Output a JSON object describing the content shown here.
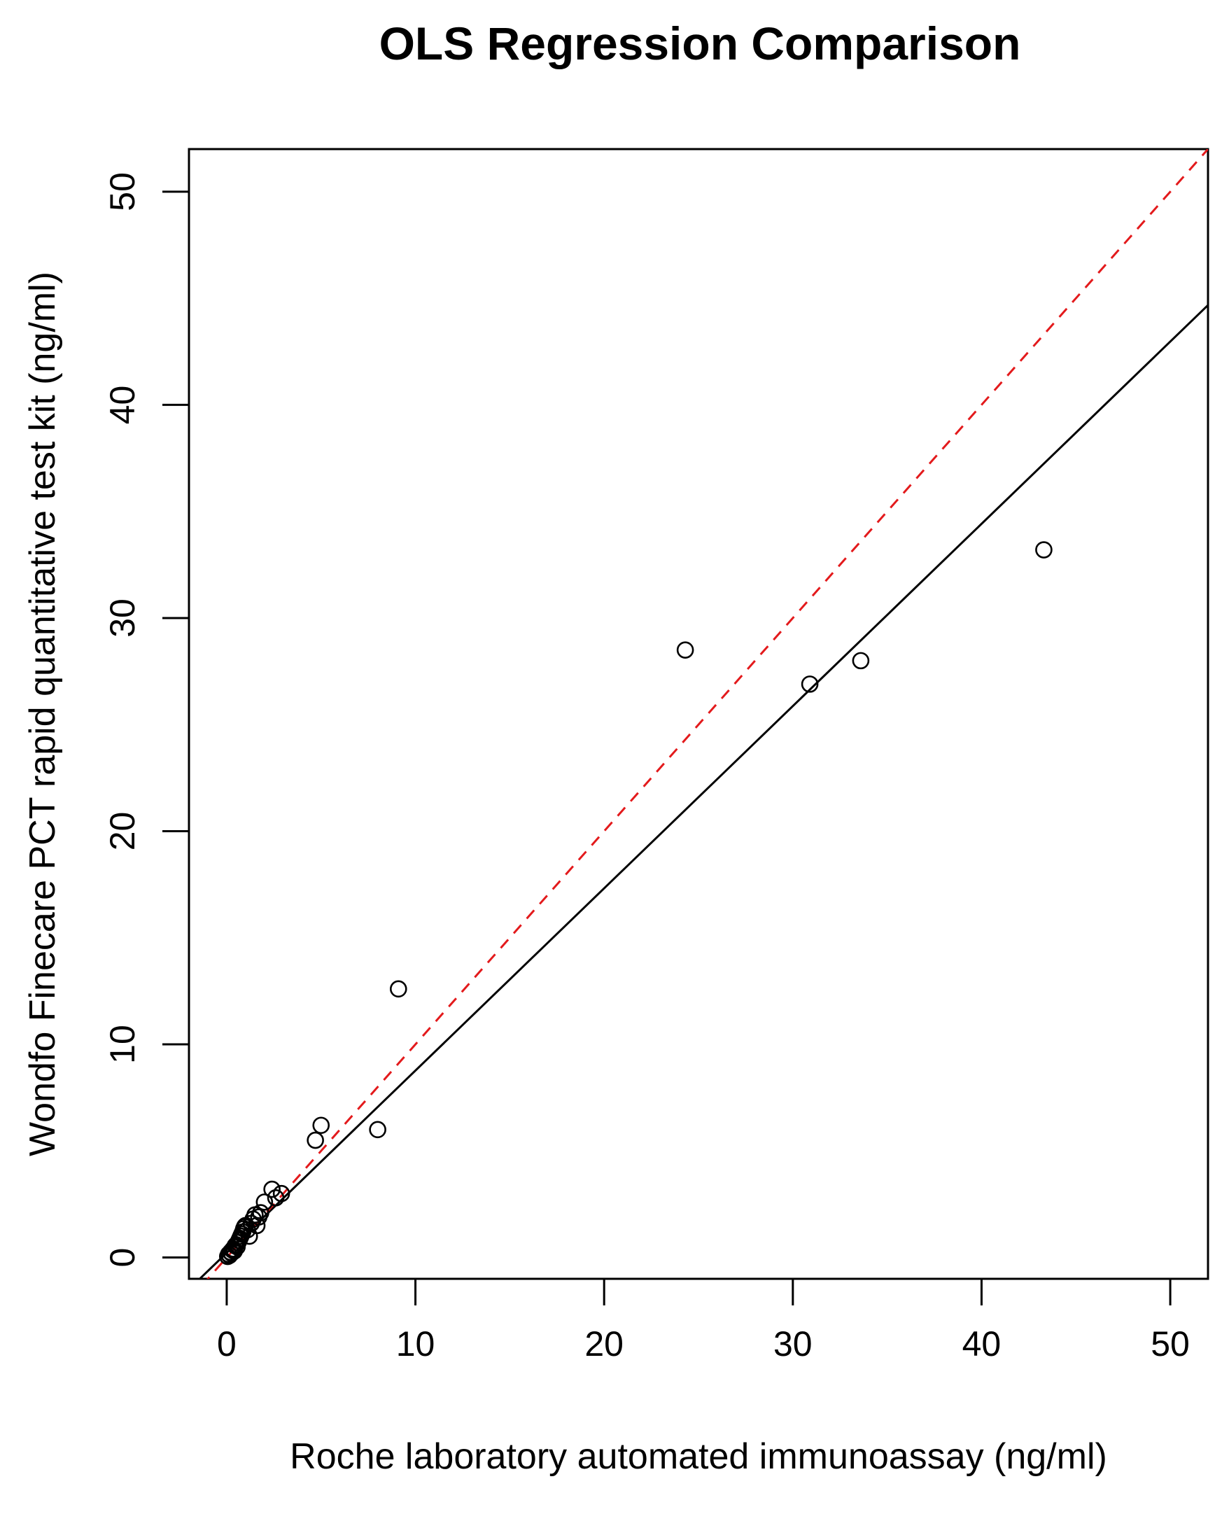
{
  "chart_data": {
    "type": "scatter",
    "title": "OLS Regression Comparison",
    "xlabel": "Roche laboratory automated immunoassay (ng/ml)",
    "ylabel": "Wondfo Finecare PCT rapid quantitative test kit (ng/ml)",
    "xlim": [
      -2,
      52
    ],
    "ylim": [
      -1,
      52
    ],
    "xticks": [
      0,
      10,
      20,
      30,
      40,
      50
    ],
    "yticks": [
      0,
      10,
      20,
      30,
      40,
      50
    ],
    "grid": false,
    "points": [
      {
        "x": 0.05,
        "y": 0.05
      },
      {
        "x": 0.1,
        "y": 0.15
      },
      {
        "x": 0.15,
        "y": 0.1
      },
      {
        "x": 0.2,
        "y": 0.25
      },
      {
        "x": 0.25,
        "y": 0.2
      },
      {
        "x": 0.3,
        "y": 0.35
      },
      {
        "x": 0.35,
        "y": 0.4
      },
      {
        "x": 0.4,
        "y": 0.3
      },
      {
        "x": 0.45,
        "y": 0.55
      },
      {
        "x": 0.5,
        "y": 0.6
      },
      {
        "x": 0.55,
        "y": 0.5
      },
      {
        "x": 0.6,
        "y": 0.7
      },
      {
        "x": 0.65,
        "y": 0.8
      },
      {
        "x": 0.7,
        "y": 0.9
      },
      {
        "x": 0.75,
        "y": 1.0
      },
      {
        "x": 0.8,
        "y": 1.1
      },
      {
        "x": 0.85,
        "y": 1.2
      },
      {
        "x": 0.9,
        "y": 1.35
      },
      {
        "x": 0.95,
        "y": 1.45
      },
      {
        "x": 1.0,
        "y": 1.5
      },
      {
        "x": 1.1,
        "y": 1.3
      },
      {
        "x": 1.2,
        "y": 1.0
      },
      {
        "x": 1.3,
        "y": 1.6
      },
      {
        "x": 1.4,
        "y": 1.8
      },
      {
        "x": 1.5,
        "y": 2.0
      },
      {
        "x": 1.6,
        "y": 1.5
      },
      {
        "x": 1.7,
        "y": 1.9
      },
      {
        "x": 1.8,
        "y": 2.1
      },
      {
        "x": 2.0,
        "y": 2.6
      },
      {
        "x": 2.4,
        "y": 3.2
      },
      {
        "x": 2.6,
        "y": 2.8
      },
      {
        "x": 2.9,
        "y": 3.0
      },
      {
        "x": 4.7,
        "y": 5.5
      },
      {
        "x": 5.0,
        "y": 6.2
      },
      {
        "x": 8.0,
        "y": 6.0
      },
      {
        "x": 9.1,
        "y": 12.6
      },
      {
        "x": 24.3,
        "y": 28.5
      },
      {
        "x": 30.9,
        "y": 26.9
      },
      {
        "x": 33.6,
        "y": 28.0
      },
      {
        "x": 43.3,
        "y": 33.2
      }
    ],
    "lines": [
      {
        "type": "fit",
        "slope": 0.855,
        "intercept": 0.22,
        "color": "#000000",
        "dash": "solid"
      },
      {
        "type": "identity",
        "slope": 1.0,
        "intercept": 0.0,
        "color": "#e31a1c",
        "dash": "dashed"
      }
    ]
  }
}
